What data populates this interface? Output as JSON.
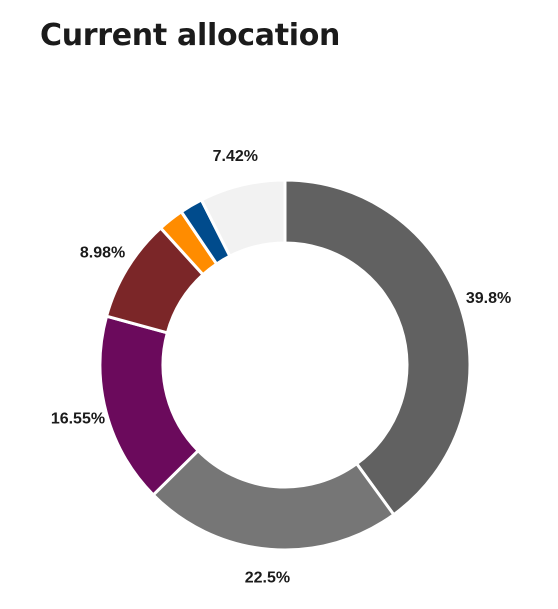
{
  "header": {
    "title": "Current allocation"
  },
  "chart_data": {
    "type": "pie",
    "donut": true,
    "title": "Current allocation",
    "legend": "none",
    "slices": [
      {
        "label": "39.8%",
        "value": 39.8,
        "color": "#616161"
      },
      {
        "label": "22.5%",
        "value": 22.5,
        "color": "#767676"
      },
      {
        "label": "16.55%",
        "value": 16.55,
        "color": "#6b0a5c"
      },
      {
        "label": "8.98%",
        "value": 8.98,
        "color": "#7b2628"
      },
      {
        "label": "",
        "value": 2.25,
        "color": "#ff8c00"
      },
      {
        "label": "",
        "value": 2.0,
        "color": "#004b8c"
      },
      {
        "label": "7.42%",
        "value": 7.42,
        "color": "#f2f2f2"
      }
    ]
  }
}
